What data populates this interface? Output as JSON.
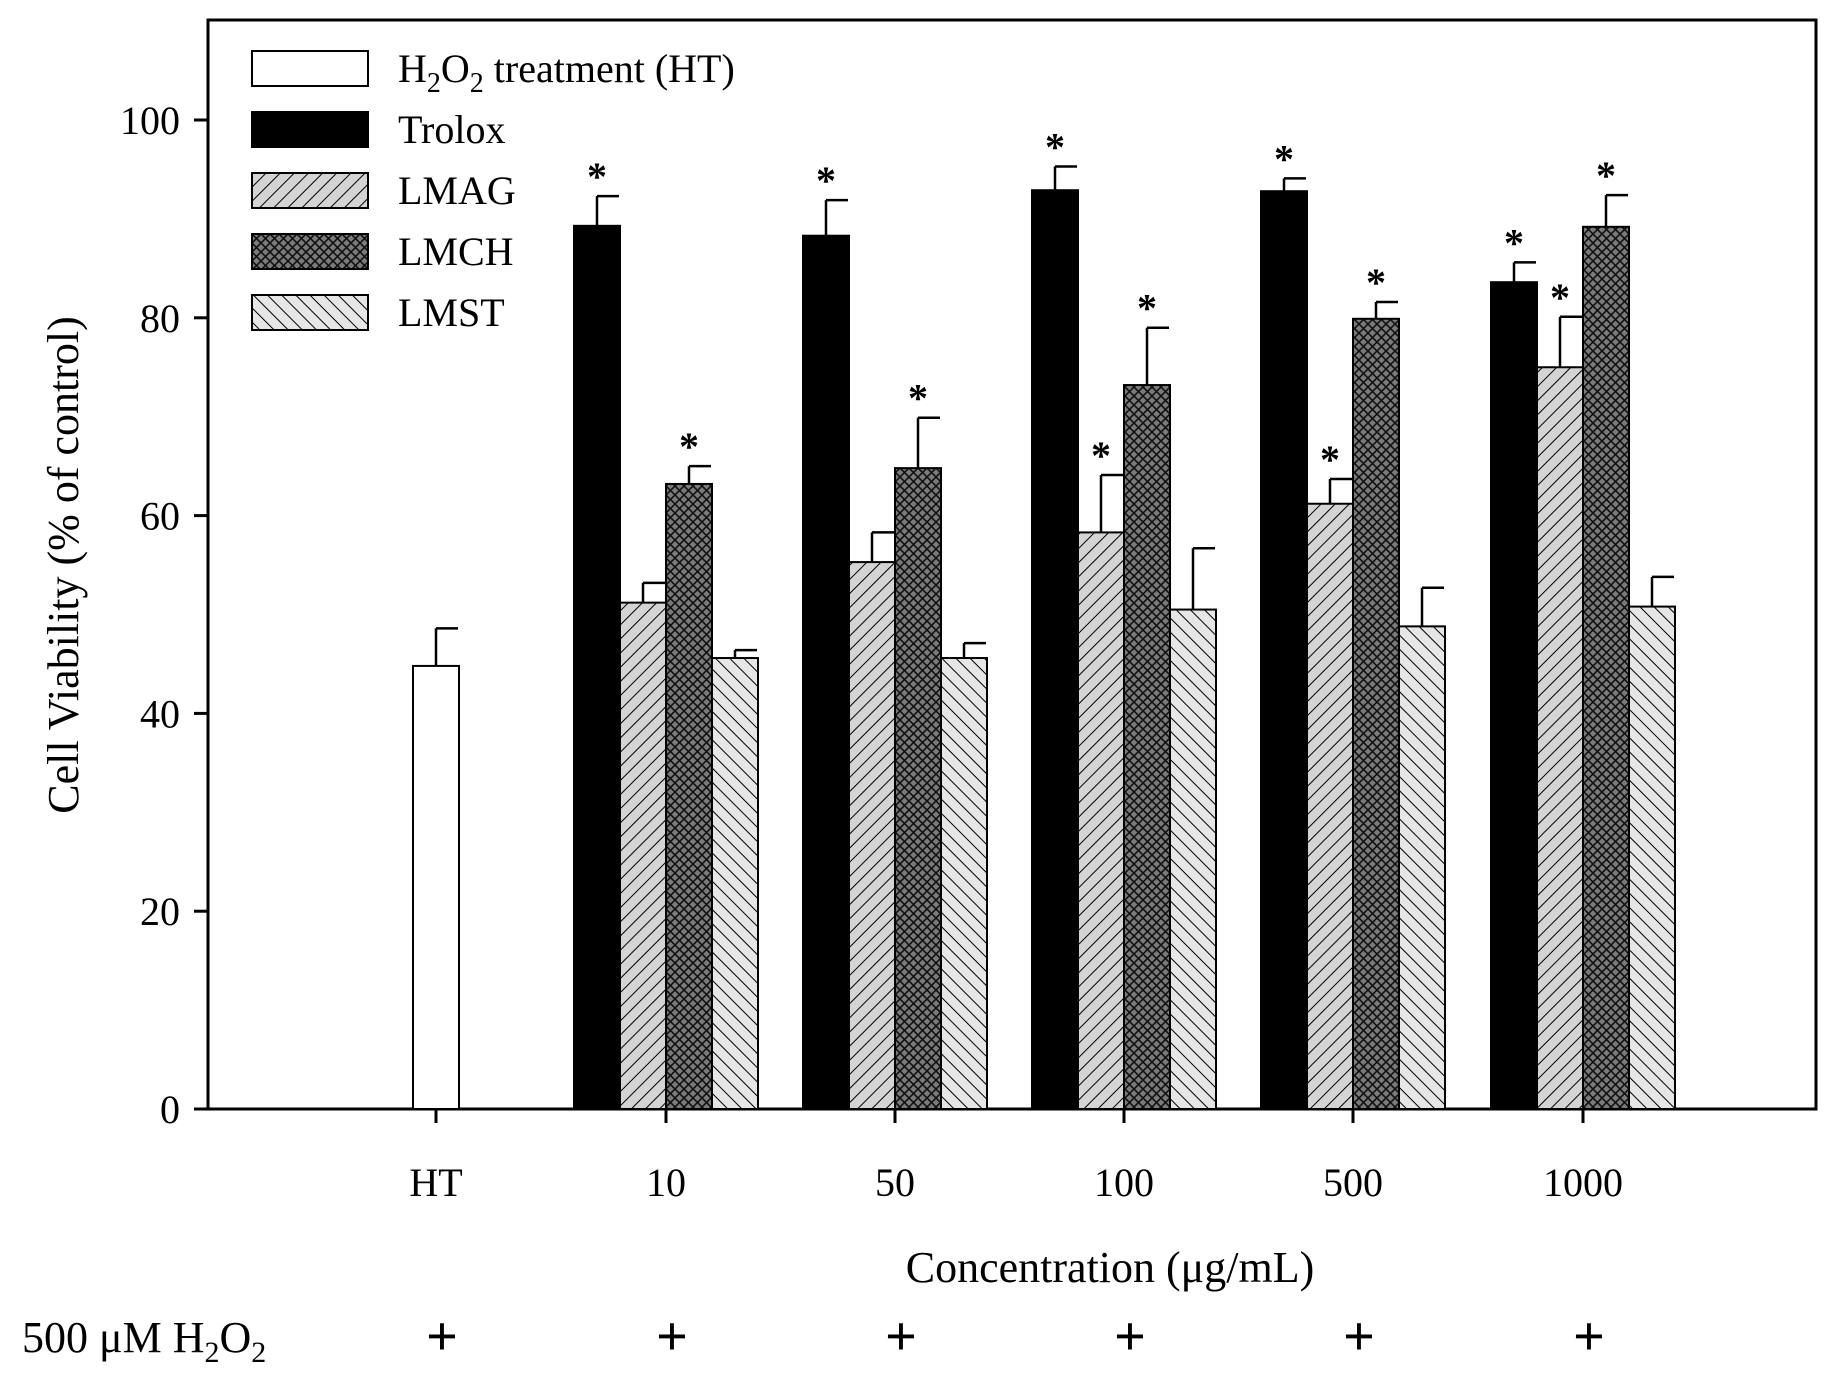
{
  "chart_data": {
    "type": "bar",
    "title": "",
    "ylabel": "Cell Viability (% of control)",
    "xlabel": "Concentration (μg/mL)",
    "ylim": [
      0,
      110
    ],
    "yticks": [
      0,
      20,
      40,
      60,
      80,
      100
    ],
    "categories": [
      "HT",
      "10",
      "50",
      "100",
      "500",
      "1000"
    ],
    "grid": false,
    "legend_position": "top-left",
    "series": [
      {
        "name": "H2O2 treatment (HT)",
        "legend_parts": {
          "a": "H",
          "sub1": "2",
          "b": "O",
          "sub2": "2",
          "c": " treatment (HT)"
        },
        "pattern": "white",
        "values": [
          44.8,
          null,
          null,
          null,
          null,
          null
        ],
        "errors": [
          3.8,
          null,
          null,
          null,
          null,
          null
        ],
        "significant": [
          false,
          false,
          false,
          false,
          false,
          false
        ]
      },
      {
        "name": "Trolox",
        "pattern": "black",
        "values": [
          null,
          89.3,
          88.3,
          92.9,
          92.8,
          83.6
        ],
        "errors": [
          null,
          3.0,
          3.6,
          2.4,
          1.3,
          2.0
        ],
        "significant": [
          false,
          true,
          true,
          true,
          true,
          true
        ]
      },
      {
        "name": "LMAG",
        "pattern": "diag-light",
        "values": [
          null,
          51.2,
          55.3,
          58.3,
          61.2,
          75.0
        ],
        "errors": [
          null,
          2.0,
          3.0,
          5.8,
          2.5,
          5.1
        ],
        "significant": [
          false,
          false,
          false,
          true,
          true,
          true
        ]
      },
      {
        "name": "LMCH",
        "pattern": "crosshatch-dark",
        "values": [
          null,
          63.2,
          64.8,
          73.2,
          79.9,
          89.2
        ],
        "errors": [
          null,
          1.8,
          5.1,
          5.8,
          1.7,
          3.2
        ],
        "significant": [
          false,
          true,
          true,
          true,
          true,
          true
        ]
      },
      {
        "name": "LMST",
        "pattern": "diag-back",
        "values": [
          null,
          45.6,
          45.6,
          50.5,
          48.8,
          50.8
        ],
        "errors": [
          null,
          0.8,
          1.5,
          6.2,
          3.9,
          3.0
        ],
        "significant": [
          false,
          false,
          false,
          false,
          false,
          false
        ]
      }
    ],
    "significance_marker": "*",
    "treatment_row": {
      "label_parts": {
        "a": "500 μM H",
        "sub1": "2",
        "b": "O",
        "sub2": "2"
      },
      "marks": [
        "+",
        "+",
        "+",
        "+",
        "+",
        "+"
      ]
    }
  }
}
